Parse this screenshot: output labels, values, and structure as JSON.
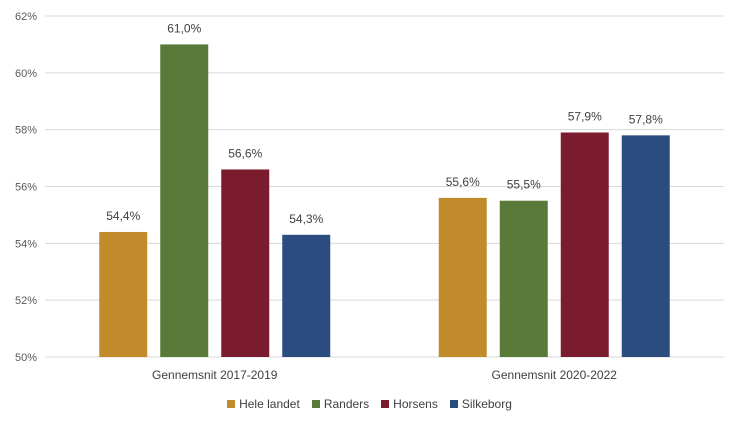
{
  "chart_data": {
    "type": "bar",
    "categories": [
      "Gennemsnit 2017-2019",
      "Gennemsnit 2020-2022"
    ],
    "series": [
      {
        "name": "Hele landet",
        "values": [
          54.4,
          55.6
        ],
        "labels": [
          "54,4%",
          "55,6%"
        ],
        "color": "#C18A2B"
      },
      {
        "name": "Randers",
        "values": [
          61.0,
          55.5
        ],
        "labels": [
          "61,0%",
          "55,5%"
        ],
        "color": "#5A7A3A"
      },
      {
        "name": "Horsens",
        "values": [
          56.6,
          57.9
        ],
        "labels": [
          "56,6%",
          "57,9%"
        ],
        "color": "#7B1C2E"
      },
      {
        "name": "Silkeborg",
        "values": [
          54.3,
          57.8
        ],
        "labels": [
          "54,3%",
          "57,8%"
        ],
        "color": "#2A4C7E"
      }
    ],
    "ylim": [
      50,
      62
    ],
    "yticks": [
      50,
      52,
      54,
      56,
      58,
      60,
      62
    ],
    "ytick_labels": [
      "50%",
      "52%",
      "54%",
      "56%",
      "58%",
      "60%",
      "62%"
    ],
    "grid": true,
    "legend_position": "bottom",
    "title": "",
    "xlabel": "",
    "ylabel": ""
  }
}
